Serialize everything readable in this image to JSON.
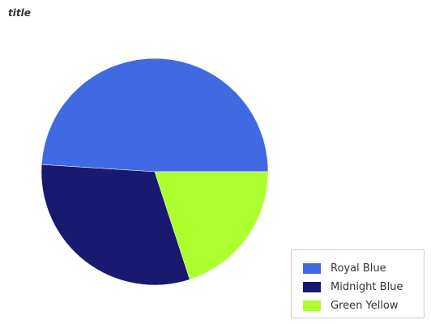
{
  "chart_data": {
    "type": "pie",
    "title": "title",
    "series": [
      {
        "name": "Royal Blue",
        "value": 49,
        "color": "#4169E1"
      },
      {
        "name": "Midnight Blue",
        "value": 31,
        "color": "#191970"
      },
      {
        "name": "Green Yellow",
        "value": 20,
        "color": "#ADFF2F"
      }
    ],
    "legend_position": "bottom-right"
  }
}
